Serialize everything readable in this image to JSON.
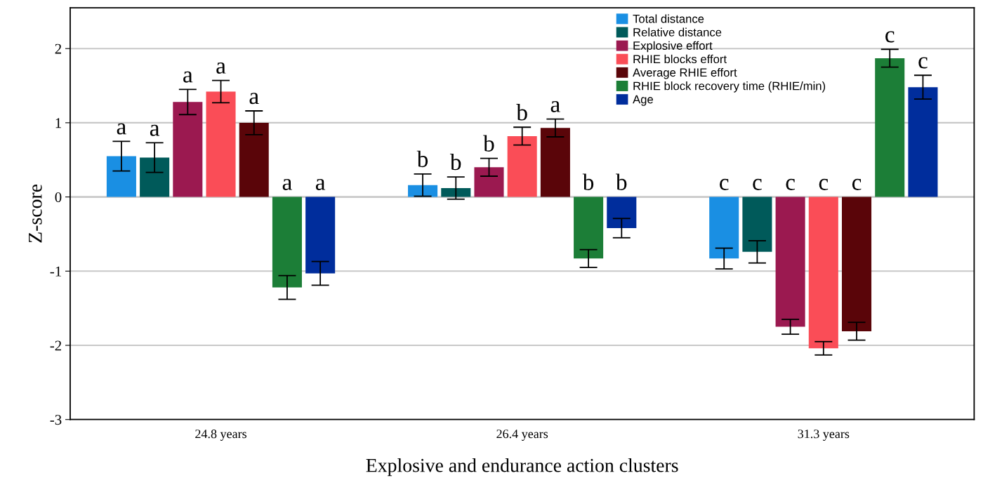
{
  "chart_data": {
    "type": "bar",
    "xlabel": "Explosive and endurance action clusters",
    "ylabel": "Z-score",
    "categories": [
      "24.8 years",
      "26.4 years",
      "31.3 years"
    ],
    "series": [
      {
        "name": "Total distance",
        "color": "#1a8fe3",
        "values": [
          0.55,
          0.16,
          -0.83
        ],
        "errors": [
          0.2,
          0.15,
          0.14
        ],
        "value_labels": [
          "a",
          "b",
          "c"
        ]
      },
      {
        "name": "Relative distance",
        "color": "#005a5a",
        "values": [
          0.53,
          0.12,
          -0.74
        ],
        "errors": [
          0.2,
          0.15,
          0.15
        ],
        "value_labels": [
          "a",
          "b",
          "c"
        ]
      },
      {
        "name": "Explosive effort",
        "color": "#9b1950",
        "values": [
          1.28,
          0.4,
          -1.75
        ],
        "errors": [
          0.17,
          0.12,
          0.1
        ],
        "value_labels": [
          "a",
          "b",
          "c"
        ]
      },
      {
        "name": "RHIE blocks effort",
        "color": "#fa4d57",
        "values": [
          1.42,
          0.82,
          -2.04
        ],
        "errors": [
          0.15,
          0.12,
          0.09
        ],
        "value_labels": [
          "a",
          "b",
          "c"
        ]
      },
      {
        "name": "Average RHIE effort",
        "color": "#5a0509",
        "values": [
          1.0,
          0.93,
          -1.81
        ],
        "errors": [
          0.16,
          0.12,
          0.12
        ],
        "value_labels": [
          "a",
          "a",
          "c"
        ]
      },
      {
        "name": "RHIE block recovery time (RHIE/min)",
        "color": "#1c7e37",
        "values": [
          -1.22,
          -0.83,
          1.87
        ],
        "errors": [
          0.16,
          0.12,
          0.12
        ],
        "value_labels": [
          "a",
          "b",
          "c"
        ]
      },
      {
        "name": "Age",
        "color": "#002d9c",
        "values": [
          -1.03,
          -0.42,
          1.48
        ],
        "errors": [
          0.16,
          0.13,
          0.16
        ],
        "value_labels": [
          "a",
          "b",
          "c"
        ]
      }
    ],
    "ylim": [
      -3,
      2.55
    ],
    "yticks": [
      -3,
      -2,
      -1,
      0,
      1,
      2
    ],
    "grid": "y",
    "legend": "top"
  }
}
